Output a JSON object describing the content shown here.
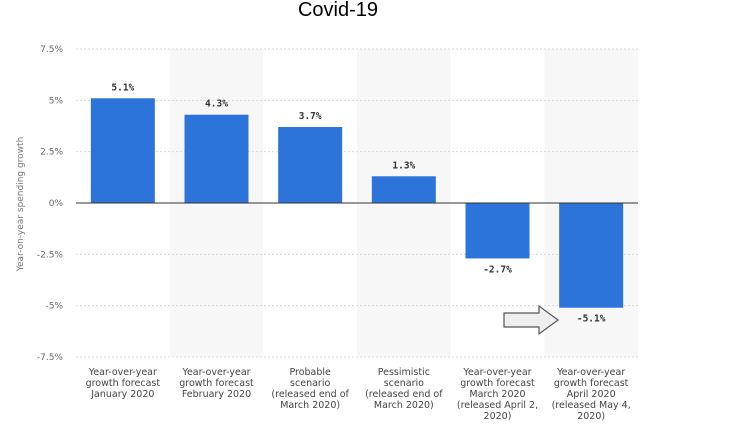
{
  "chart_data": {
    "type": "bar",
    "title": "Covid-19",
    "ylabel": "Year-on-year spending growth",
    "xlabel": "",
    "ylim": [
      -7.5,
      7.5
    ],
    "yticks": [
      7.5,
      5,
      2.5,
      0,
      -2.5,
      -5,
      -7.5
    ],
    "ytick_labels": [
      "7.5%",
      "5%",
      "2.5%",
      "0%",
      "-2.5%",
      "-5%",
      "-7.5%"
    ],
    "categories": [
      [
        "Year-over-year",
        "growth forecast",
        "January 2020"
      ],
      [
        "Year-over-year",
        "growth forecast",
        "February 2020"
      ],
      [
        "Probable",
        "scenario",
        "(released end of",
        "March 2020)"
      ],
      [
        "Pessimistic",
        "scenario",
        "(released end of",
        "March 2020)"
      ],
      [
        "Year-over-year",
        "growth forecast",
        "March 2020",
        "(released April 2,",
        "2020)"
      ],
      [
        "Year-over-year",
        "growth forecast",
        "April 2020",
        "(released May 4,",
        "2020)"
      ]
    ],
    "values": [
      5.1,
      4.3,
      3.7,
      1.3,
      -2.7,
      -5.1
    ],
    "data_labels": [
      "5.1%",
      "4.3%",
      "3.7%",
      "1.3%",
      "-2.7%",
      "-5.1%"
    ],
    "grid": true,
    "bar_color": "#2d74da",
    "alternate_band_color": "#f7f7f7",
    "annotation": "arrow-icon pointing at last bar"
  }
}
